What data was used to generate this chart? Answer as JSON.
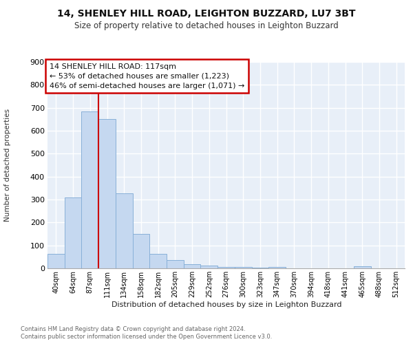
{
  "title1": "14, SHENLEY HILL ROAD, LEIGHTON BUZZARD, LU7 3BT",
  "title2": "Size of property relative to detached houses in Leighton Buzzard",
  "xlabel": "Distribution of detached houses by size in Leighton Buzzard",
  "ylabel": "Number of detached properties",
  "bar_labels": [
    "40sqm",
    "64sqm",
    "87sqm",
    "111sqm",
    "134sqm",
    "158sqm",
    "182sqm",
    "205sqm",
    "229sqm",
    "252sqm",
    "276sqm",
    "300sqm",
    "323sqm",
    "347sqm",
    "370sqm",
    "394sqm",
    "418sqm",
    "441sqm",
    "465sqm",
    "488sqm",
    "512sqm"
  ],
  "bar_values": [
    62,
    310,
    685,
    650,
    328,
    150,
    63,
    35,
    18,
    12,
    7,
    5,
    4,
    5,
    1,
    0,
    0,
    0,
    8,
    0,
    0
  ],
  "bar_color": "#c5d8f0",
  "bar_edge_color": "#88b0d8",
  "bg_color": "#e8eff8",
  "grid_color": "#ffffff",
  "vline_color": "#cc0000",
  "vline_x": 3.0,
  "annotation_title": "14 SHENLEY HILL ROAD: 117sqm",
  "annotation_line1": "← 53% of detached houses are smaller (1,223)",
  "annotation_line2": "46% of semi-detached houses are larger (1,071) →",
  "annotation_box_facecolor": "#ffffff",
  "annotation_box_edgecolor": "#cc0000",
  "ylim": [
    0,
    900
  ],
  "yticks": [
    0,
    100,
    200,
    300,
    400,
    500,
    600,
    700,
    800,
    900
  ],
  "fig_bg": "#ffffff",
  "footnote1": "Contains HM Land Registry data © Crown copyright and database right 2024.",
  "footnote2": "Contains public sector information licensed under the Open Government Licence v3.0."
}
